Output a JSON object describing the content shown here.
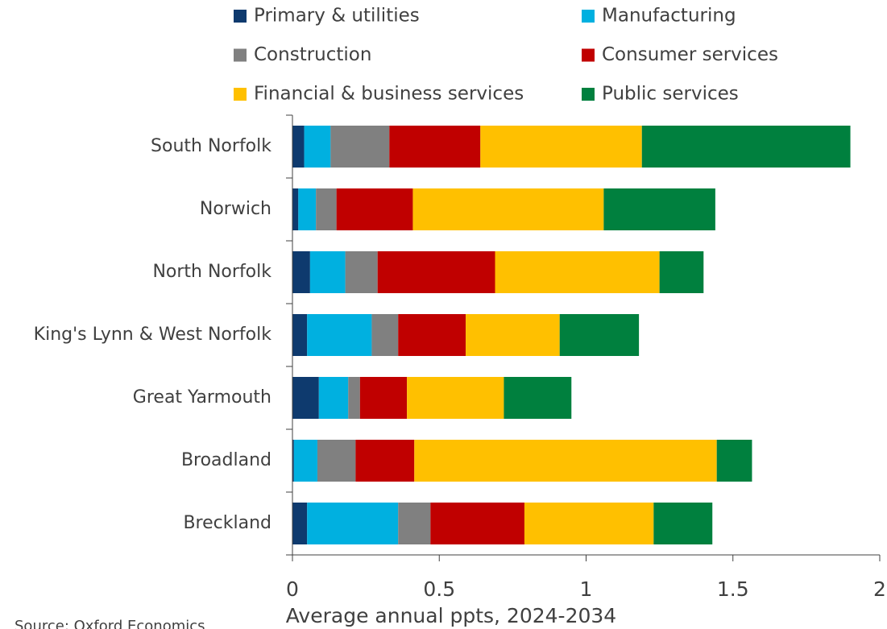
{
  "chart_data": {
    "type": "stacked_barh",
    "categories": [
      "South Norfolk",
      "Norwich",
      "North Norfolk",
      "King's Lynn & West Norfolk",
      "Great Yarmouth",
      "Broadland",
      "Breckland"
    ],
    "series": [
      {
        "name": "Primary & utilities",
        "color": "#0e3a6e",
        "values": [
          0.04,
          0.02,
          0.06,
          0.05,
          0.09,
          0.005,
          0.05
        ]
      },
      {
        "name": "Manufacturing",
        "color": "#00b0e0",
        "values": [
          0.09,
          0.06,
          0.12,
          0.22,
          0.1,
          0.08,
          0.31
        ]
      },
      {
        "name": "Construction",
        "color": "#808080",
        "values": [
          0.2,
          0.07,
          0.11,
          0.09,
          0.04,
          0.13,
          0.11
        ]
      },
      {
        "name": "Consumer services",
        "color": "#c00000",
        "values": [
          0.31,
          0.26,
          0.4,
          0.23,
          0.16,
          0.2,
          0.32
        ]
      },
      {
        "name": "Financial & business services",
        "color": "#ffc000",
        "values": [
          0.55,
          0.65,
          0.56,
          0.32,
          0.33,
          1.03,
          0.44
        ]
      },
      {
        "name": "Public services",
        "color": "#00803e",
        "values": [
          0.71,
          0.38,
          0.15,
          0.27,
          0.23,
          0.12,
          0.2
        ]
      }
    ],
    "xlim": [
      0,
      2
    ],
    "xticks": [
      0,
      0.5,
      1,
      1.5,
      2
    ],
    "xlabel": "Average annual ppts, 2024-2034",
    "source": "Source: Oxford Economics",
    "legend": "top"
  }
}
